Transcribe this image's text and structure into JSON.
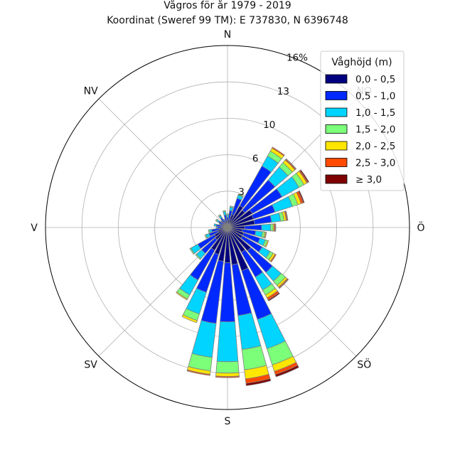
{
  "chart_data": {
    "type": "windrose",
    "title_line1": "Vågros för år 1979 - 2019",
    "title_line2": "Koordinat (Sweref 99 TM): E 737830, N 6396748",
    "directions": [
      "N",
      "NO",
      "Ö",
      "SÖ",
      "S",
      "SV",
      "V",
      "NV"
    ],
    "direction_labels": [
      "N",
      "NO",
      "Ö",
      "SÖ",
      "S",
      "SV",
      "V",
      "NV"
    ],
    "sector_count": 32,
    "radial_ticks": [
      "3",
      "6",
      "10",
      "13",
      "16%"
    ],
    "radial_tick_values": [
      3.2,
      6.4,
      9.6,
      12.8,
      16.0
    ],
    "rmax": 16.0,
    "grid": true,
    "legend": {
      "title": "Våghöjd (m)",
      "placement": "top-right",
      "entries": [
        "0,0 - 0,5",
        "0,5 - 1,0",
        "1,0 - 1,5",
        "1,5 - 2,0",
        "2,0 - 2,5",
        "2,5 - 3,0",
        "≥ 3,0"
      ]
    },
    "colors": [
      "#00007f",
      "#0028ff",
      "#00d4ff",
      "#7cff79",
      "#ffe600",
      "#ff4a00",
      "#7f0000"
    ],
    "sectors": [
      {
        "direction_deg": 0.0,
        "values": [
          0.5,
          0.4,
          0.2,
          0.1,
          0.0,
          0.0,
          0.0
        ]
      },
      {
        "direction_deg": 11.25,
        "values": [
          0.7,
          0.8,
          0.3,
          0.1,
          0.0,
          0.0,
          0.0
        ]
      },
      {
        "direction_deg": 22.5,
        "values": [
          1.2,
          1.5,
          0.3,
          0.1,
          0.0,
          0.0,
          0.0
        ]
      },
      {
        "direction_deg": 33.75,
        "values": [
          2.2,
          4.0,
          1.0,
          0.5,
          0.3,
          0.1,
          0.0
        ]
      },
      {
        "direction_deg": 45.0,
        "values": [
          2.0,
          3.5,
          1.5,
          0.5,
          0.3,
          0.1,
          0.05
        ]
      },
      {
        "direction_deg": 56.25,
        "values": [
          2.5,
          3.0,
          1.7,
          0.5,
          0.3,
          0.1,
          0.1
        ]
      },
      {
        "direction_deg": 67.5,
        "values": [
          2.4,
          2.0,
          1.6,
          0.5,
          0.3,
          0.2,
          0.1
        ]
      },
      {
        "direction_deg": 78.75,
        "values": [
          2.4,
          1.5,
          0.8,
          0.3,
          0.2,
          0.1,
          0.05
        ]
      },
      {
        "direction_deg": 90.0,
        "values": [
          1.5,
          1.5,
          0.8,
          0.2,
          0.1,
          0.1,
          0.05
        ]
      },
      {
        "direction_deg": 101.25,
        "values": [
          1.3,
          1.2,
          0.6,
          0.2,
          0.1,
          0.05,
          0.0
        ]
      },
      {
        "direction_deg": 112.5,
        "values": [
          1.5,
          1.5,
          0.5,
          0.2,
          0.1,
          0.0,
          0.0
        ]
      },
      {
        "direction_deg": 123.75,
        "values": [
          1.5,
          2.0,
          0.8,
          0.3,
          0.2,
          0.1,
          0.0
        ]
      },
      {
        "direction_deg": 135.0,
        "values": [
          2.7,
          2.5,
          1.0,
          0.5,
          0.2,
          0.1,
          0.05
        ]
      },
      {
        "direction_deg": 146.25,
        "values": [
          2.5,
          2.5,
          1.3,
          0.5,
          0.3,
          0.2,
          0.1
        ]
      },
      {
        "direction_deg": 157.5,
        "values": [
          4.0,
          4.5,
          2.7,
          1.5,
          0.6,
          0.3,
          0.2
        ]
      },
      {
        "direction_deg": 168.75,
        "values": [
          3.3,
          4.5,
          3.0,
          1.8,
          0.8,
          0.4,
          0.2
        ]
      },
      {
        "direction_deg": 180.0,
        "values": [
          3.1,
          5.2,
          3.5,
          1.0,
          0.3,
          0.1,
          0.0
        ]
      },
      {
        "direction_deg": 191.25,
        "values": [
          3.0,
          5.5,
          3.0,
          1.2,
          0.3,
          0.1,
          0.0
        ]
      },
      {
        "direction_deg": 202.5,
        "values": [
          2.5,
          3.5,
          2.0,
          0.6,
          0.2,
          0.0,
          0.0
        ]
      },
      {
        "direction_deg": 213.75,
        "values": [
          2.3,
          3.0,
          1.5,
          0.4,
          0.1,
          0.0,
          0.0
        ]
      },
      {
        "direction_deg": 225.0,
        "values": [
          1.4,
          1.6,
          0.6,
          0.1,
          0.0,
          0.0,
          0.0
        ]
      },
      {
        "direction_deg": 236.25,
        "values": [
          1.3,
          1.7,
          0.7,
          0.1,
          0.0,
          0.0,
          0.0
        ]
      },
      {
        "direction_deg": 247.5,
        "values": [
          0.9,
          0.8,
          0.3,
          0.1,
          0.0,
          0.0,
          0.0
        ]
      },
      {
        "direction_deg": 258.75,
        "values": [
          0.7,
          0.7,
          0.2,
          0.1,
          0.0,
          0.0,
          0.0
        ]
      },
      {
        "direction_deg": 270.0,
        "values": [
          0.5,
          0.4,
          0.1,
          0.0,
          0.0,
          0.0,
          0.0
        ]
      },
      {
        "direction_deg": 281.25,
        "values": [
          0.5,
          0.5,
          0.2,
          0.0,
          0.0,
          0.0,
          0.0
        ]
      },
      {
        "direction_deg": 292.5,
        "values": [
          0.4,
          0.3,
          0.1,
          0.0,
          0.0,
          0.0,
          0.0
        ]
      },
      {
        "direction_deg": 303.75,
        "values": [
          0.5,
          0.4,
          0.2,
          0.1,
          0.0,
          0.0,
          0.0
        ]
      },
      {
        "direction_deg": 315.0,
        "values": [
          0.4,
          0.3,
          0.1,
          0.0,
          0.0,
          0.0,
          0.0
        ]
      },
      {
        "direction_deg": 326.25,
        "values": [
          0.5,
          0.5,
          0.2,
          0.1,
          0.0,
          0.0,
          0.0
        ]
      },
      {
        "direction_deg": 337.5,
        "values": [
          0.4,
          0.3,
          0.1,
          0.0,
          0.0,
          0.0,
          0.0
        ]
      },
      {
        "direction_deg": 348.75,
        "values": [
          0.6,
          0.5,
          0.3,
          0.1,
          0.0,
          0.0,
          0.0
        ]
      }
    ]
  }
}
